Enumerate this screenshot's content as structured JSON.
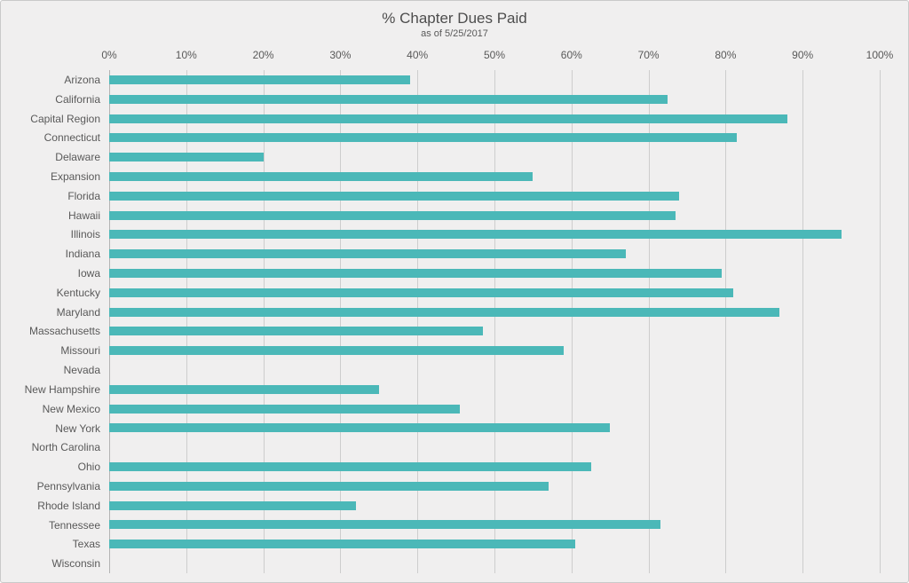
{
  "header": {
    "title": "% Chapter Dues Paid",
    "subtitle": "as of 5/25/2017"
  },
  "colors": {
    "bar": "#4bb8b8",
    "background": "#f0efef",
    "gridline": "#cdcdcd",
    "axis_line": "#b3b3b3",
    "text": "#595959"
  },
  "chart_data": {
    "type": "bar",
    "orientation": "horizontal",
    "title": "% Chapter Dues Paid",
    "subtitle": "as of 5/25/2017",
    "xlabel": "",
    "ylabel": "",
    "xlim": [
      0,
      100
    ],
    "x_tick_labels": [
      "0%",
      "10%",
      "20%",
      "30%",
      "40%",
      "50%",
      "60%",
      "70%",
      "80%",
      "90%",
      "100%"
    ],
    "grid": "vertical",
    "legend": "none",
    "categories": [
      "Arizona",
      "California",
      "Capital Region",
      "Connecticut",
      "Delaware",
      "Expansion",
      "Florida",
      "Hawaii",
      "Illinois",
      "Indiana",
      "Iowa",
      "Kentucky",
      "Maryland",
      "Massachusetts",
      "Missouri",
      "Nevada",
      "New Hampshire",
      "New Mexico",
      "New York",
      "North Carolina",
      "Ohio",
      "Pennsylvania",
      "Rhode Island",
      "Tennessee",
      "Texas",
      "Wisconsin"
    ],
    "values": [
      39,
      72.5,
      88,
      81.5,
      20,
      55,
      74,
      73.5,
      95,
      67,
      79.5,
      81,
      87,
      48.5,
      59,
      0,
      35,
      45.5,
      65,
      0,
      62.5,
      57,
      32,
      71.5,
      60.5,
      0
    ]
  }
}
